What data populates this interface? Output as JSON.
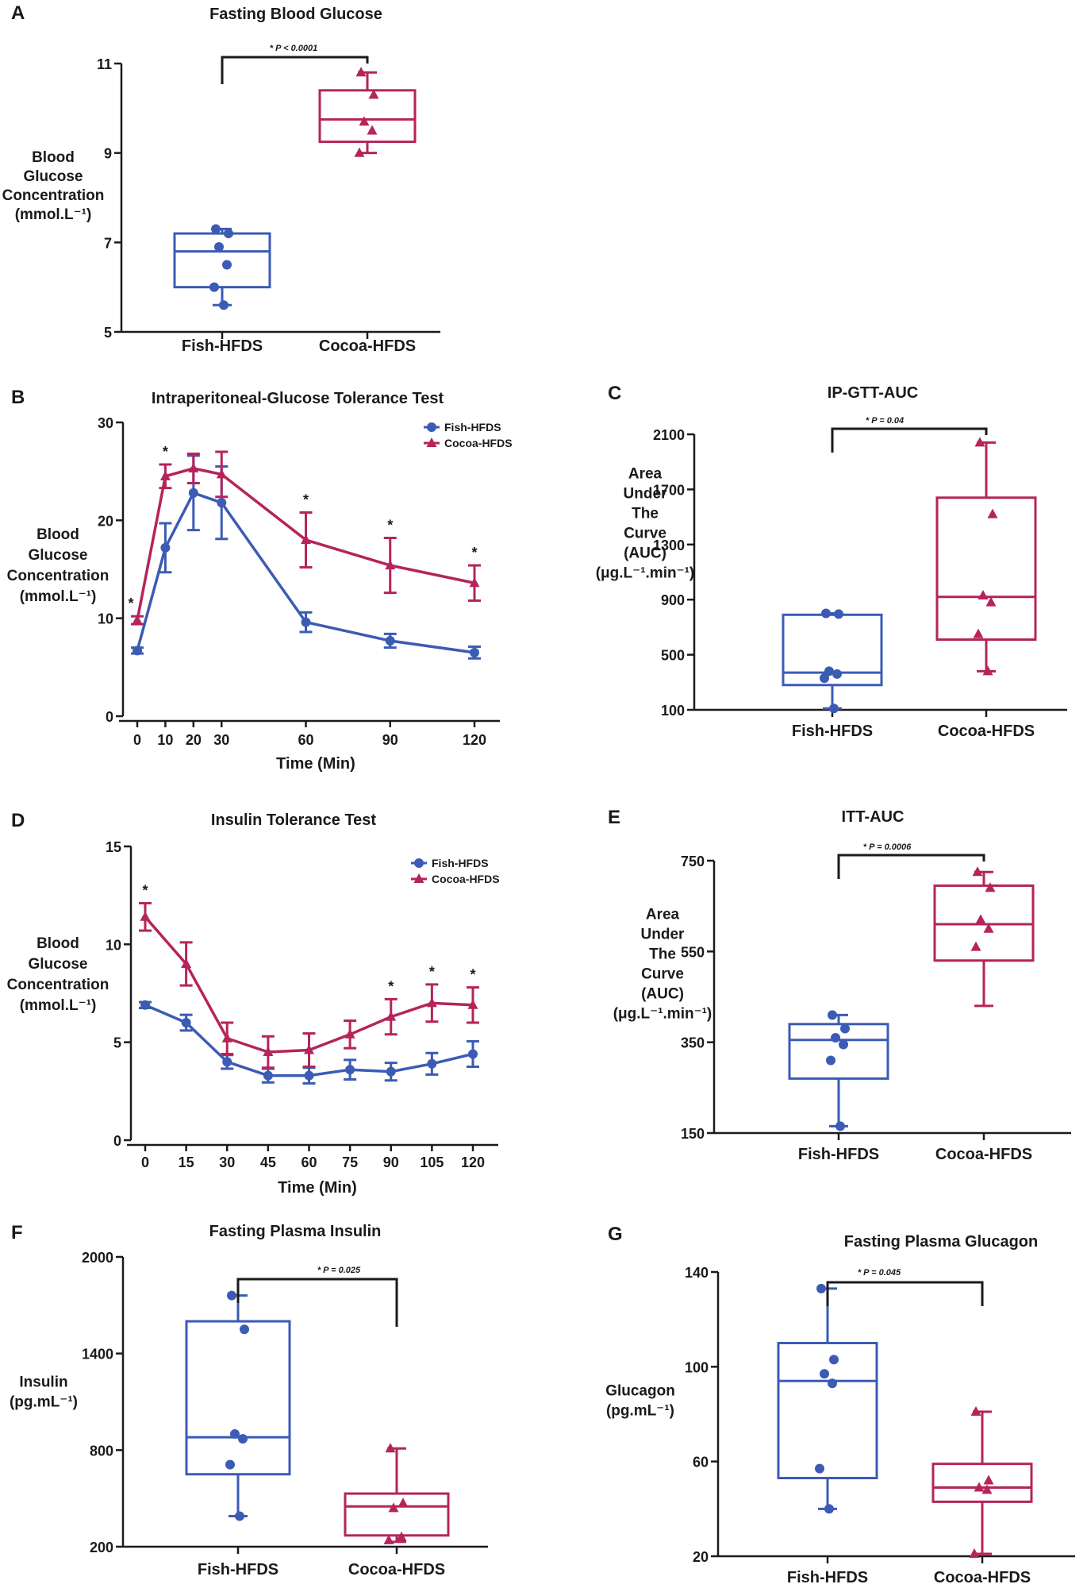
{
  "colors": {
    "fish": "#3b5bb5",
    "cocoa": "#b5245a",
    "axis": "#1a1a1a"
  },
  "chart_data": [
    {
      "id": "A",
      "letter": "A",
      "type": "box",
      "title": "Fasting Blood Glucose",
      "ylabel": [
        "Blood",
        "Glucose",
        "Concentration",
        "(mmol.L⁻¹)"
      ],
      "ylim": [
        5,
        11
      ],
      "yticks": [
        5,
        7,
        9,
        11
      ],
      "significance": "* P < 0.0001",
      "groups": [
        {
          "name": "Fish-HFDS",
          "series": "fish",
          "min": 5.6,
          "q1": 6.0,
          "median": 6.8,
          "q3": 7.2,
          "max": 7.3,
          "points": [
            7.3,
            7.2,
            6.9,
            6.5,
            6.0,
            5.6
          ]
        },
        {
          "name": "Cocoa-HFDS",
          "series": "cocoa",
          "min": 9.0,
          "q1": 9.25,
          "median": 9.75,
          "q3": 10.4,
          "max": 10.8,
          "points": [
            10.8,
            10.3,
            9.7,
            9.5,
            9.0
          ]
        }
      ]
    },
    {
      "id": "B",
      "letter": "B",
      "type": "line",
      "title": "Intraperitoneal-Glucose Tolerance Test",
      "ylabel": [
        "Blood",
        "Glucose",
        "Concentration",
        "(mmol.L⁻¹)"
      ],
      "xlabel": "Time (Min)",
      "ylim": [
        0,
        30
      ],
      "yticks": [
        0,
        10,
        20,
        30
      ],
      "x": [
        0,
        10,
        20,
        30,
        60,
        90,
        120
      ],
      "xlim": [
        -10,
        125
      ],
      "series": [
        {
          "name": "Fish-HFDS",
          "key": "fish",
          "values": [
            6.7,
            17.2,
            22.8,
            21.8,
            9.6,
            7.7,
            6.5
          ],
          "errors": [
            0.3,
            2.5,
            3.8,
            3.7,
            1.0,
            0.7,
            0.6
          ]
        },
        {
          "name": "Cocoa-HFDS",
          "key": "cocoa",
          "values": [
            9.8,
            24.5,
            25.3,
            24.7,
            18.0,
            15.4,
            13.6
          ],
          "errors": [
            0.4,
            1.2,
            1.5,
            2.3,
            2.8,
            2.8,
            1.8
          ]
        }
      ],
      "stars": [
        0,
        10,
        60,
        90,
        120
      ]
    },
    {
      "id": "C",
      "letter": "C",
      "type": "box",
      "title": "IP-GTT-AUC",
      "ylabel": [
        "Area",
        "Under",
        "The",
        "Curve",
        "(AUC)",
        "(μg.L⁻¹.min⁻¹)"
      ],
      "ylim": [
        100,
        2100
      ],
      "yticks": [
        100,
        500,
        900,
        1300,
        1700,
        2100
      ],
      "significance": "* P = 0.04",
      "groups": [
        {
          "name": "Fish-HFDS",
          "series": "fish",
          "min": 110,
          "q1": 280,
          "median": 370,
          "q3": 790,
          "max": 800,
          "points": [
            800,
            795,
            380,
            360,
            330,
            110
          ]
        },
        {
          "name": "Cocoa-HFDS",
          "series": "cocoa",
          "min": 380,
          "q1": 610,
          "median": 920,
          "q3": 1640,
          "max": 2040,
          "points": [
            2040,
            1520,
            930,
            880,
            650,
            380
          ]
        }
      ]
    },
    {
      "id": "D",
      "letter": "D",
      "type": "line",
      "title": "Insulin Tolerance Test",
      "ylabel": [
        "Blood",
        "Glucose",
        "Concentration",
        "(mmol.L⁻¹)"
      ],
      "xlabel": "Time (Min)",
      "ylim": [
        0,
        15
      ],
      "yticks": [
        0,
        5,
        10,
        15
      ],
      "x": [
        0,
        15,
        30,
        45,
        60,
        75,
        90,
        105,
        120
      ],
      "xlim": [
        -8,
        124
      ],
      "series": [
        {
          "name": "Fish-HFDS",
          "key": "fish",
          "values": [
            6.9,
            6.0,
            4.0,
            3.3,
            3.3,
            3.6,
            3.5,
            3.9,
            4.4
          ],
          "errors": [
            0.15,
            0.4,
            0.35,
            0.35,
            0.4,
            0.5,
            0.45,
            0.55,
            0.65
          ]
        },
        {
          "name": "Cocoa-HFDS",
          "key": "cocoa",
          "values": [
            11.4,
            9.0,
            5.2,
            4.5,
            4.6,
            5.4,
            6.3,
            7.0,
            6.9
          ],
          "errors": [
            0.7,
            1.1,
            0.8,
            0.8,
            0.85,
            0.7,
            0.9,
            0.95,
            0.9
          ]
        }
      ],
      "stars": [
        0,
        90,
        105,
        120
      ]
    },
    {
      "id": "E",
      "letter": "E",
      "type": "box",
      "title": "ITT-AUC",
      "ylabel": [
        "Area",
        "Under",
        "The",
        "Curve",
        "(AUC)",
        "(μg.L⁻¹.min⁻¹)"
      ],
      "ylim": [
        150,
        750
      ],
      "yticks": [
        150,
        350,
        550,
        750
      ],
      "significance": "* P = 0.0006",
      "groups": [
        {
          "name": "Fish-HFDS",
          "series": "fish",
          "min": 165,
          "q1": 270,
          "median": 355,
          "q3": 390,
          "max": 410,
          "points": [
            410,
            380,
            360,
            345,
            310,
            165
          ]
        },
        {
          "name": "Cocoa-HFDS",
          "series": "cocoa",
          "min": 430,
          "q1": 530,
          "median": 610,
          "q3": 695,
          "max": 725,
          "points": [
            725,
            690,
            620,
            600,
            560
          ]
        }
      ]
    },
    {
      "id": "F",
      "letter": "F",
      "type": "box",
      "title": "Fasting Plasma Insulin",
      "ylabel": [
        "Insulin",
        "(pg.mL⁻¹)"
      ],
      "ylim": [
        200,
        2000
      ],
      "yticks": [
        200,
        800,
        1400,
        2000
      ],
      "significance": "* P = 0.025",
      "groups": [
        {
          "name": "Fish-HFDS",
          "series": "fish",
          "min": 390,
          "q1": 650,
          "median": 880,
          "q3": 1600,
          "max": 1760,
          "points": [
            1760,
            1550,
            900,
            870,
            710,
            390
          ]
        },
        {
          "name": "Cocoa-HFDS",
          "series": "cocoa",
          "min": 230,
          "q1": 270,
          "median": 450,
          "q3": 530,
          "max": 810,
          "points": [
            810,
            470,
            440,
            260,
            240
          ]
        }
      ]
    },
    {
      "id": "G",
      "letter": "G",
      "type": "box",
      "title": "Fasting Plasma Glucagon",
      "ylabel": [
        "Glucagon",
        "(pg.mL⁻¹)"
      ],
      "ylim": [
        20,
        140
      ],
      "yticks": [
        20,
        60,
        100,
        140
      ],
      "significance": "* P = 0.045",
      "groups": [
        {
          "name": "Fish-HFDS",
          "series": "fish",
          "min": 40,
          "q1": 53,
          "median": 94,
          "q3": 110,
          "max": 133,
          "points": [
            133,
            103,
            97,
            93,
            57,
            40
          ]
        },
        {
          "name": "Cocoa-HFDS",
          "series": "cocoa",
          "min": 21,
          "q1": 43,
          "median": 49,
          "q3": 59,
          "max": 81,
          "points": [
            81,
            52,
            49,
            48,
            21
          ]
        }
      ]
    }
  ]
}
